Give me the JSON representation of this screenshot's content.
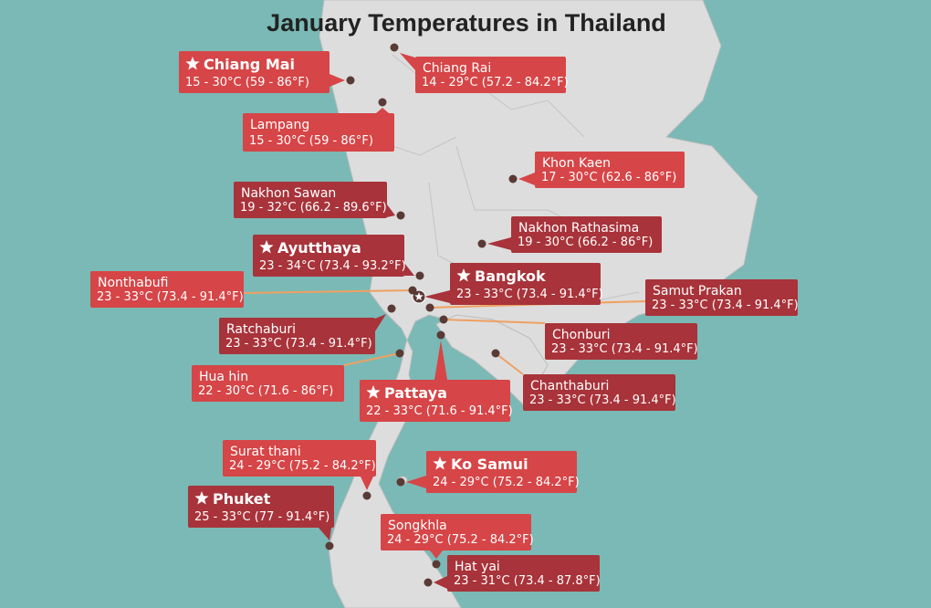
{
  "title": "January Temperatures in Thailand",
  "cities": [
    {
      "name": "Chiang Mai",
      "temps": "15 - 30°C (59 - 86°F)",
      "featured": true
    },
    {
      "name": "Chiang Rai",
      "temps": "14 - 29°C (57.2 - 84.2°F)",
      "featured": false
    },
    {
      "name": "Lampang",
      "temps": "15 - 30°C (59 - 86°F)",
      "featured": false
    },
    {
      "name": "Khon Kaen",
      "temps": "17 - 30°C (62.6 - 86°F)",
      "featured": false
    },
    {
      "name": "Nakhon Sawan",
      "temps": "19 - 32°C (66.2 - 89.6°F)",
      "featured": false
    },
    {
      "name": "Nakhon Rathasima",
      "temps": "19 - 30°C (66.2 - 86°F)",
      "featured": false
    },
    {
      "name": "Ayutthaya",
      "temps": "23 - 34°C (73.4 - 93.2°F)",
      "featured": true
    },
    {
      "name": "Bangkok",
      "temps": "23 - 33°C (73.4 - 91.4°F)",
      "featured": true
    },
    {
      "name": "Nonthabufi",
      "temps": "23 - 33°C (73.4 - 91.4°F)",
      "featured": false
    },
    {
      "name": "Samut Prakan",
      "temps": "23 - 33°C (73.4 - 91.4°F)",
      "featured": false
    },
    {
      "name": "Ratchaburi",
      "temps": "23 - 33°C (73.4 - 91.4°F)",
      "featured": false
    },
    {
      "name": "Chonburi",
      "temps": "23 - 33°C (73.4 - 91.4°F)",
      "featured": false
    },
    {
      "name": "Hua hin",
      "temps": "22 - 30°C (71.6 - 86°F)",
      "featured": false
    },
    {
      "name": "Pattaya",
      "temps": "22 - 33°C (71.6 - 91.4°F)",
      "featured": true
    },
    {
      "name": "Chanthaburi",
      "temps": "23 - 33°C (73.4 - 91.4°F)",
      "featured": false
    },
    {
      "name": "Surat thani",
      "temps": "24 - 29°C (75.2 - 84.2°F)",
      "featured": false
    },
    {
      "name": "Ko Samui",
      "temps": "24 - 29°C (75.2 - 84.2°F)",
      "featured": true
    },
    {
      "name": "Phuket",
      "temps": "25 - 33°C (77 - 91.4°F)",
      "featured": true
    },
    {
      "name": "Songkhla",
      "temps": "24 - 29°C (75.2 - 84.2°F)",
      "featured": false
    },
    {
      "name": "Hat yai",
      "temps": "23 - 31°C (73.4 - 87.8°F)",
      "featured": false
    }
  ]
}
